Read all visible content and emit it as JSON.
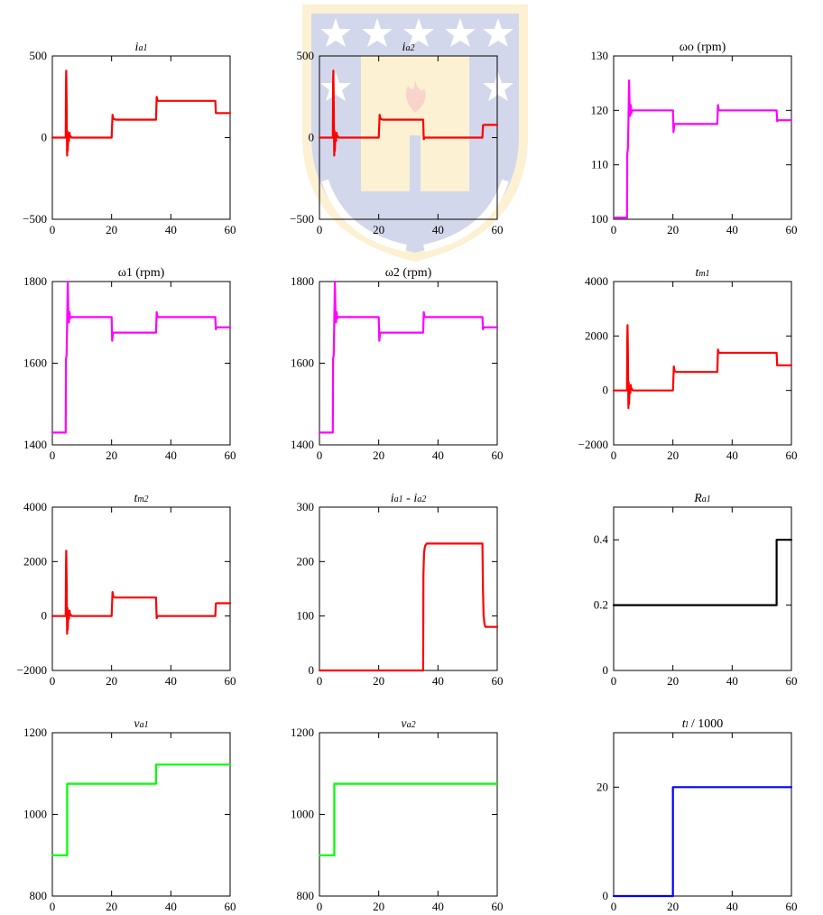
{
  "watermark": {
    "description": "university crest with stars, flame and laurel",
    "colors": {
      "blue": "#3b4fa8",
      "gold": "#f3c13a",
      "red": "#e04020"
    }
  },
  "chart_data": [
    {
      "type": "line",
      "title": "",
      "title_parts": [
        [
          "i",
          "it"
        ],
        [
          "a1",
          "sub"
        ]
      ],
      "xlabel": "",
      "ylabel": "",
      "xlim": [
        0,
        60
      ],
      "xticks": [
        0,
        20,
        40,
        60
      ],
      "ylim": [
        -500,
        500
      ],
      "yticks": [
        -500,
        0,
        500
      ],
      "yticklabels": [
        "−500",
        "0",
        "500"
      ],
      "series": [
        {
          "color": "#ff0000",
          "x": [
            0,
            4.5,
            4.6,
            4.7,
            4.8,
            4.9,
            5.0,
            5.1,
            5.2,
            5.4,
            5.6,
            5.8,
            6.0,
            6.2,
            6.5,
            20,
            20.3,
            20.6,
            21,
            21.4,
            35,
            35.2,
            35.5,
            36,
            55,
            55.2,
            55.5,
            60
          ],
          "y": [
            0,
            0,
            330,
            410,
            250,
            30,
            -110,
            40,
            -80,
            20,
            -20,
            30,
            5,
            8,
            0,
            0,
            140,
            115,
            112,
            110,
            110,
            250,
            225,
            225,
            225,
            150,
            150,
            150
          ]
        }
      ]
    },
    {
      "type": "line",
      "title": "",
      "title_parts": [
        [
          "i",
          "it"
        ],
        [
          "a2",
          "sub"
        ]
      ],
      "xlabel": "",
      "ylabel": "",
      "xlim": [
        0,
        60
      ],
      "xticks": [
        0,
        20,
        40,
        60
      ],
      "ylim": [
        -500,
        500
      ],
      "yticks": [
        -500,
        0,
        500
      ],
      "yticklabels": [
        "−500",
        "0",
        "500"
      ],
      "series": [
        {
          "color": "#ff0000",
          "x": [
            0,
            4.5,
            4.6,
            4.7,
            4.8,
            4.9,
            5.0,
            5.1,
            5.2,
            5.4,
            5.6,
            5.8,
            6.0,
            6.2,
            6.5,
            20,
            20.3,
            20.6,
            21,
            21.4,
            35,
            35.2,
            35.5,
            36,
            55,
            55.2,
            55.5,
            60
          ],
          "y": [
            0,
            0,
            330,
            410,
            250,
            30,
            -110,
            40,
            -80,
            20,
            -20,
            30,
            5,
            8,
            0,
            0,
            140,
            115,
            112,
            110,
            110,
            -10,
            0,
            0,
            0,
            75,
            78,
            78
          ]
        }
      ]
    },
    {
      "type": "line",
      "title": "ωo (rpm)",
      "xlabel": "",
      "ylabel": "",
      "xlim": [
        0,
        60
      ],
      "xticks": [
        0,
        20,
        40,
        60
      ],
      "ylim": [
        100,
        130
      ],
      "yticks": [
        100,
        110,
        120,
        130
      ],
      "yticklabels": [
        "100",
        "110",
        "120",
        "130"
      ],
      "series": [
        {
          "color": "#ff00ff",
          "x": [
            0,
            4.5,
            4.6,
            4.8,
            5.0,
            5.2,
            5.4,
            5.6,
            5.8,
            6.0,
            6.3,
            6.8,
            20,
            20.2,
            20.5,
            21,
            35,
            35.2,
            35.5,
            36,
            55,
            55.2,
            55.5,
            60
          ],
          "y": [
            100.3,
            100.3,
            112,
            113,
            118,
            125.5,
            121,
            119,
            121,
            119.5,
            120,
            120,
            120,
            116,
            117.5,
            117.5,
            117.5,
            121,
            120,
            120,
            120,
            118,
            118.2,
            118.2
          ]
        }
      ]
    },
    {
      "type": "line",
      "title": "ω1 (rpm)",
      "xlabel": "",
      "ylabel": "",
      "xlim": [
        0,
        60
      ],
      "xticks": [
        0,
        20,
        40,
        60
      ],
      "ylim": [
        1400,
        1800
      ],
      "yticks": [
        1400,
        1600,
        1800
      ],
      "yticklabels": [
        "1400",
        "1600",
        "1800"
      ],
      "series": [
        {
          "color": "#ff00ff",
          "x": [
            0,
            4.5,
            4.6,
            4.8,
            5.0,
            5.2,
            5.4,
            5.6,
            5.8,
            6.0,
            6.3,
            6.8,
            20,
            20.2,
            20.5,
            21,
            35,
            35.2,
            35.5,
            36,
            55,
            55.2,
            55.5,
            60
          ],
          "y": [
            1430,
            1430,
            1610,
            1620,
            1700,
            1800,
            1730,
            1700,
            1725,
            1710,
            1713,
            1713,
            1713,
            1655,
            1675,
            1675,
            1675,
            1725,
            1713,
            1713,
            1713,
            1683,
            1688,
            1688
          ]
        }
      ]
    },
    {
      "type": "line",
      "title": "ω2 (rpm)",
      "xlabel": "",
      "ylabel": "",
      "xlim": [
        0,
        60
      ],
      "xticks": [
        0,
        20,
        40,
        60
      ],
      "ylim": [
        1400,
        1800
      ],
      "yticks": [
        1400,
        1600,
        1800
      ],
      "yticklabels": [
        "1400",
        "1600",
        "1800"
      ],
      "series": [
        {
          "color": "#ff00ff",
          "x": [
            0,
            4.5,
            4.6,
            4.8,
            5.0,
            5.2,
            5.4,
            5.6,
            5.8,
            6.0,
            6.3,
            6.8,
            20,
            20.2,
            20.5,
            21,
            35,
            35.2,
            35.5,
            36,
            55,
            55.2,
            55.5,
            60
          ],
          "y": [
            1430,
            1430,
            1610,
            1620,
            1700,
            1800,
            1730,
            1700,
            1725,
            1710,
            1713,
            1713,
            1713,
            1655,
            1675,
            1675,
            1675,
            1725,
            1713,
            1713,
            1713,
            1683,
            1688,
            1688
          ]
        }
      ]
    },
    {
      "type": "line",
      "title": "",
      "title_parts": [
        [
          "t",
          "it"
        ],
        [
          "m1",
          "sub"
        ]
      ],
      "xlabel": "",
      "ylabel": "",
      "xlim": [
        0,
        60
      ],
      "xticks": [
        0,
        20,
        40,
        60
      ],
      "ylim": [
        -2000,
        4000
      ],
      "yticks": [
        -2000,
        0,
        2000,
        4000
      ],
      "yticklabels": [
        "−2000",
        "0",
        "2000",
        "4000"
      ],
      "series": [
        {
          "color": "#ff0000",
          "x": [
            0,
            4.5,
            4.6,
            4.7,
            4.8,
            4.9,
            5.0,
            5.1,
            5.2,
            5.4,
            5.6,
            5.8,
            6.0,
            6.2,
            6.5,
            20,
            20.3,
            20.6,
            21,
            21.4,
            35,
            35.2,
            35.5,
            36,
            55,
            55.2,
            55.5,
            60
          ],
          "y": [
            0,
            0,
            1800,
            2400,
            1500,
            200,
            -650,
            300,
            -500,
            150,
            -100,
            200,
            30,
            50,
            0,
            0,
            880,
            700,
            690,
            680,
            680,
            1500,
            1380,
            1380,
            1380,
            920,
            920,
            920
          ]
        }
      ]
    },
    {
      "type": "line",
      "title": "",
      "title_parts": [
        [
          "t",
          "it"
        ],
        [
          "m2",
          "sub"
        ]
      ],
      "xlabel": "",
      "ylabel": "",
      "xlim": [
        0,
        60
      ],
      "xticks": [
        0,
        20,
        40,
        60
      ],
      "ylim": [
        -2000,
        4000
      ],
      "yticks": [
        -2000,
        0,
        2000,
        4000
      ],
      "yticklabels": [
        "−2000",
        "0",
        "2000",
        "4000"
      ],
      "series": [
        {
          "color": "#ff0000",
          "x": [
            0,
            4.5,
            4.6,
            4.7,
            4.8,
            4.9,
            5.0,
            5.1,
            5.2,
            5.4,
            5.6,
            5.8,
            6.0,
            6.2,
            6.5,
            20,
            20.3,
            20.6,
            21,
            21.4,
            35,
            35.2,
            35.5,
            36,
            55,
            55.2,
            55.5,
            60
          ],
          "y": [
            0,
            0,
            1800,
            2400,
            1500,
            200,
            -650,
            300,
            -500,
            150,
            -100,
            200,
            30,
            50,
            0,
            0,
            880,
            700,
            690,
            680,
            680,
            -80,
            0,
            0,
            0,
            460,
            470,
            470
          ]
        }
      ]
    },
    {
      "type": "line",
      "title": "",
      "title_parts": [
        [
          "i",
          "it"
        ],
        [
          "a1",
          "sub"
        ],
        [
          " - ",
          "n"
        ],
        [
          "i",
          "it"
        ],
        [
          "a2",
          "sub"
        ]
      ],
      "xlabel": "",
      "ylabel": "",
      "xlim": [
        0,
        60
      ],
      "xticks": [
        0,
        20,
        40,
        60
      ],
      "ylim": [
        0,
        300
      ],
      "yticks": [
        0,
        100,
        200,
        300
      ],
      "yticklabels": [
        "0",
        "100",
        "200",
        "300"
      ],
      "series": [
        {
          "color": "#ff0000",
          "x": [
            0,
            35,
            35.1,
            35.3,
            35.5,
            35.8,
            36.2,
            37,
            55,
            55.2,
            55.4,
            55.7,
            56,
            60
          ],
          "y": [
            0,
            0,
            175,
            215,
            225,
            230,
            233,
            233,
            233,
            150,
            100,
            85,
            80,
            80
          ]
        }
      ]
    },
    {
      "type": "line",
      "title": "",
      "title_parts": [
        [
          "R",
          "it"
        ],
        [
          "a1",
          "sub"
        ]
      ],
      "xlabel": "",
      "ylabel": "",
      "xlim": [
        0,
        60
      ],
      "xticks": [
        0,
        20,
        40,
        60
      ],
      "ylim": [
        0,
        0.5
      ],
      "yticks": [
        0,
        0.2,
        0.4
      ],
      "yticklabels": [
        "0",
        "0.2",
        "0.4"
      ],
      "series": [
        {
          "color": "#000000",
          "x": [
            0,
            55,
            55.01,
            60
          ],
          "y": [
            0.2,
            0.2,
            0.4,
            0.4
          ]
        }
      ]
    },
    {
      "type": "line",
      "title": "",
      "title_parts": [
        [
          "v",
          "it"
        ],
        [
          "a1",
          "sub"
        ]
      ],
      "xlabel": "",
      "ylabel": "",
      "xlim": [
        0,
        60
      ],
      "xticks": [
        0,
        20,
        40,
        60
      ],
      "ylim": [
        800,
        1200
      ],
      "yticks": [
        800,
        1000,
        1200
      ],
      "yticklabels": [
        "800",
        "1000",
        "1200"
      ],
      "series": [
        {
          "color": "#00ff00",
          "x": [
            0,
            5,
            5.01,
            35,
            35.01,
            60
          ],
          "y": [
            900,
            900,
            1075,
            1075,
            1122,
            1122
          ]
        }
      ]
    },
    {
      "type": "line",
      "title": "",
      "title_parts": [
        [
          "v",
          "it"
        ],
        [
          "a2",
          "sub"
        ]
      ],
      "xlabel": "",
      "ylabel": "",
      "xlim": [
        0,
        60
      ],
      "xticks": [
        0,
        20,
        40,
        60
      ],
      "ylim": [
        800,
        1200
      ],
      "yticks": [
        800,
        1000,
        1200
      ],
      "yticklabels": [
        "800",
        "1000",
        "1200"
      ],
      "series": [
        {
          "color": "#00ff00",
          "x": [
            0,
            5,
            5.01,
            60
          ],
          "y": [
            900,
            900,
            1075,
            1075
          ]
        }
      ]
    },
    {
      "type": "line",
      "title": "",
      "title_parts": [
        [
          "t",
          "it"
        ],
        [
          "l",
          "sub"
        ],
        [
          " / 1000",
          "n"
        ]
      ],
      "xlabel": "",
      "ylabel": "",
      "xlim": [
        0,
        60
      ],
      "xticks": [
        0,
        20,
        40,
        60
      ],
      "ylim": [
        0,
        30
      ],
      "yticks": [
        0,
        20
      ],
      "yticklabels": [
        "0",
        "20"
      ],
      "series": [
        {
          "color": "#0000ff",
          "x": [
            0,
            20,
            20.01,
            60
          ],
          "y": [
            0,
            0,
            20,
            20
          ]
        }
      ]
    }
  ]
}
